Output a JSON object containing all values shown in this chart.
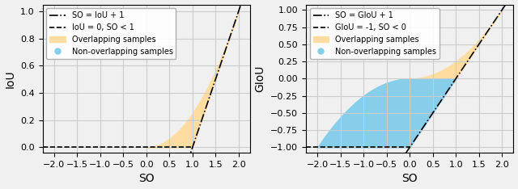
{
  "left": {
    "xlabel": "SO",
    "ylabel": "IoU",
    "xlim": [
      -2.25,
      2.25
    ],
    "ylim": [
      -0.04,
      1.05
    ],
    "xticks": [
      -2.0,
      -1.5,
      -1.0,
      -0.5,
      0.0,
      0.5,
      1.0,
      1.5,
      2.0
    ],
    "yticks": [
      0.0,
      0.2,
      0.4,
      0.6,
      0.8,
      1.0
    ],
    "legend1_label": "SO = IoU + 1",
    "legend2_label": "IoU = 0, SO < 1",
    "legend3_label": "Overlapping samples",
    "legend4_label": "Non-overlapping samples",
    "orange_color": "#FFDDA0",
    "cyan_color": "#87CEEB"
  },
  "right": {
    "xlabel": "SO",
    "ylabel": "GIoU",
    "xlim": [
      -2.25,
      2.25
    ],
    "ylim": [
      -1.08,
      1.08
    ],
    "xticks": [
      -2.0,
      -1.5,
      -1.0,
      -0.5,
      0.0,
      0.5,
      1.0,
      1.5,
      2.0
    ],
    "yticks": [
      -1.0,
      -0.75,
      -0.5,
      -0.25,
      0.0,
      0.25,
      0.5,
      0.75,
      1.0
    ],
    "legend1_label": "SO = GIoU + 1",
    "legend2_label": "GIoU = -1, SO < 0",
    "legend3_label": "Overlapping samples",
    "legend4_label": "Non-overlapping samples",
    "orange_color": "#FFDDA0",
    "cyan_color": "#87CEEB"
  },
  "fig_width": 6.4,
  "fig_height": 2.34,
  "dpi": 100,
  "background_color": "#f0f0f0",
  "grid_color": "#cccccc"
}
